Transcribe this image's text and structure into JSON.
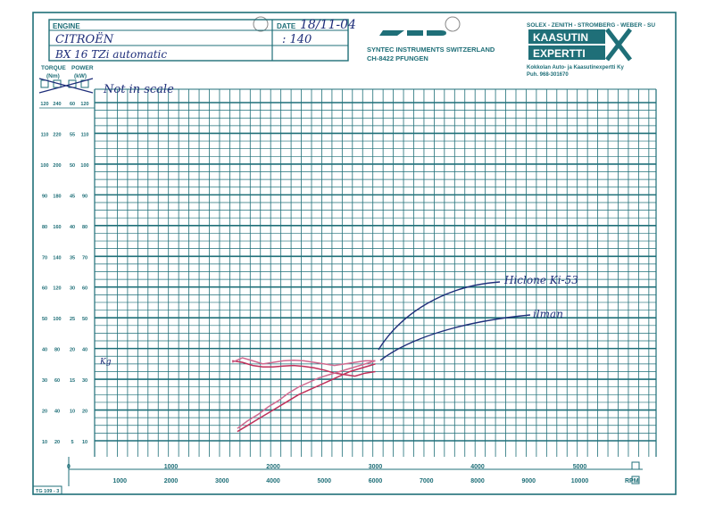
{
  "header": {
    "engine_label": "ENGINE",
    "engine_line1": "CITROËN",
    "engine_line2": "BX 16 TZi automatic",
    "date_label": "DATE",
    "date_value": "18/11-04",
    "ratio_value": ": 140",
    "syntec_line1": "SYNTEC  INSTRUMENTS  SWITZERLAND",
    "syntec_line2": "CH-8422  PFUNGEN",
    "brands": "SOLEX - ZENITH - STROMBERG - WEBER - SU",
    "kaasutin": "KAASUTIN",
    "expertti": "EXPERTTI",
    "company_line": "Kokkolan Auto- ja Kaasutinexpertti Ky",
    "phone_line": "Puh.  968-301670"
  },
  "form_code": "TG 109 - 3",
  "notes": {
    "scale": "Not in scale",
    "label_hiclone": "Hiclone Ki-53",
    "label_ilman": "ilman",
    "left_mark": "Kg"
  },
  "colors": {
    "grid": "#1f6f78",
    "ink": "#1f2f7a",
    "curve_red": "#c0305a",
    "curve_pink": "#d06a90"
  },
  "chart_data": {
    "type": "line",
    "left_axes": {
      "headers": [
        "TORQUE (Nm)",
        "POWER (kW)"
      ],
      "rows": [
        [
          "120",
          "240",
          "60",
          "120"
        ],
        [
          "110",
          "220",
          "55",
          "110"
        ],
        [
          "100",
          "200",
          "50",
          "100"
        ],
        [
          "90",
          "180",
          "45",
          "90"
        ],
        [
          "80",
          "160",
          "40",
          "80"
        ],
        [
          "70",
          "140",
          "35",
          "70"
        ],
        [
          "60",
          "120",
          "30",
          "60"
        ],
        [
          "50",
          "100",
          "25",
          "50"
        ],
        [
          "40",
          "80",
          "20",
          "40"
        ],
        [
          "30",
          "60",
          "15",
          "30"
        ],
        [
          "20",
          "40",
          "10",
          "20"
        ],
        [
          "10",
          "20",
          "5",
          "10"
        ]
      ]
    },
    "x_axis_top": {
      "ticks": [
        "0",
        "1000",
        "2000",
        "3000",
        "4000",
        "5000"
      ],
      "range": [
        0,
        5000
      ]
    },
    "x_axis_bottom": {
      "ticks": [
        "1000",
        "2000",
        "3000",
        "4000",
        "5000",
        "6000",
        "7000",
        "8000",
        "9000",
        "10000"
      ],
      "range": [
        0,
        10000
      ]
    },
    "xlabel": "RPM",
    "scale_mode": "rpm 0-5000 (top scale)",
    "series": [
      {
        "name": "ilman",
        "color": "#c0305a",
        "x": [
          1600,
          1700,
          1800,
          1900,
          2000,
          2100,
          2200,
          2300,
          2400,
          2500,
          2600,
          2700,
          2800,
          2900,
          3000
        ],
        "y": [
          36,
          35.5,
          34.5,
          34,
          34,
          34.3,
          34.5,
          34.2,
          33.7,
          33,
          32,
          31.5,
          31,
          32,
          32.5
        ]
      },
      {
        "name": "Hiclone Ki-53",
        "color": "#d06a90",
        "x": [
          1600,
          1700,
          1800,
          1900,
          2000,
          2100,
          2200,
          2300,
          2400,
          2500,
          2600,
          2700,
          2800,
          2900,
          3000
        ],
        "y": [
          35.5,
          37,
          36,
          35,
          35.5,
          36,
          36.2,
          36,
          35.5,
          35,
          34.5,
          35,
          35.5,
          36,
          36
        ]
      },
      {
        "name": "ilman",
        "color": "#c0305a",
        "x": [
          1650,
          1750,
          1850,
          1950,
          2050,
          2150,
          2250,
          2350,
          2450,
          2550,
          2650,
          2750,
          2850,
          2950,
          3000
        ],
        "y": [
          13,
          15,
          17,
          19,
          21,
          23,
          25,
          26.5,
          28,
          29.5,
          31,
          32.5,
          33.5,
          34.5,
          35
        ]
      },
      {
        "name": "Hiclone Ki-53",
        "color": "#d06a90",
        "x": [
          1650,
          1750,
          1850,
          1950,
          2050,
          2150,
          2250,
          2350,
          2450,
          2550,
          2650,
          2750,
          2850,
          2950,
          3000
        ],
        "y": [
          14,
          16.5,
          18.5,
          21,
          23,
          25.5,
          27.5,
          29,
          30.5,
          31.5,
          32.5,
          33.5,
          34.5,
          35.5,
          36
        ]
      }
    ]
  }
}
